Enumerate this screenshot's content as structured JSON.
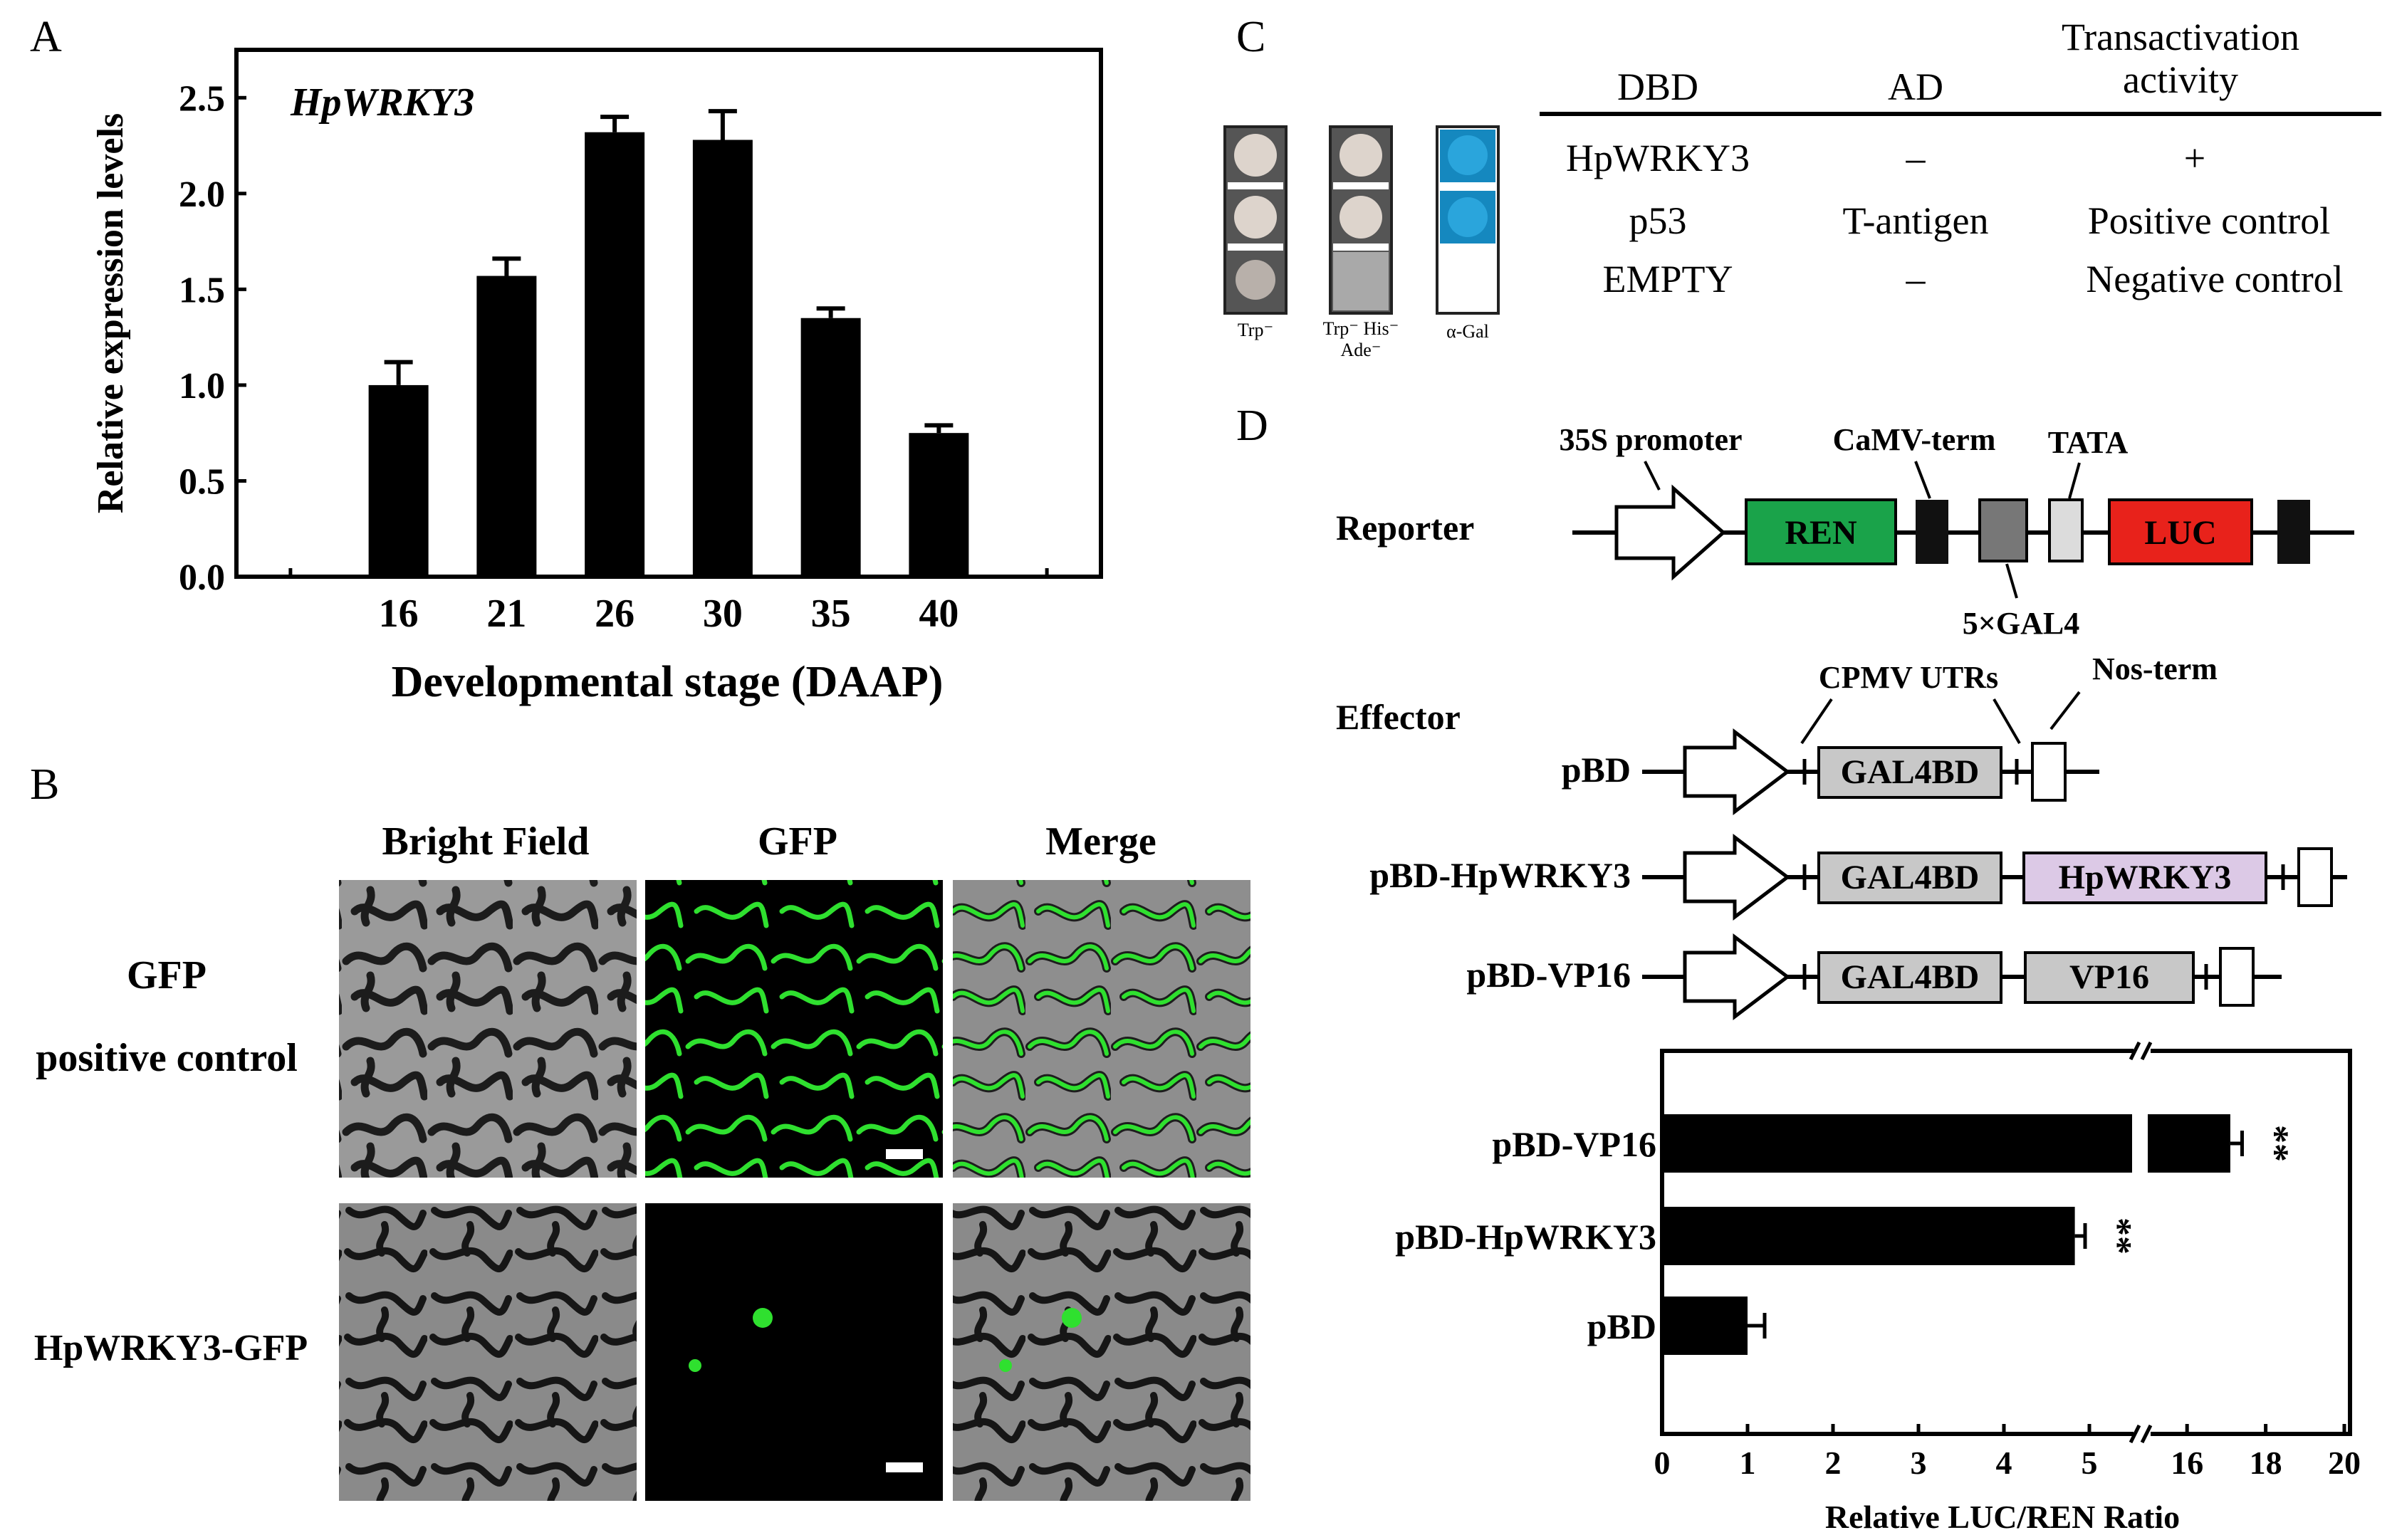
{
  "panels": {
    "A": "A",
    "B": "B",
    "C": "C",
    "D": "D"
  },
  "colors": {
    "ren": "#1aa34a",
    "luc": "#e8221b",
    "hpwrky3_box": "#dcc9e6",
    "gal4bd_box": "#c8c8c8",
    "dark_box": "#777777",
    "tata_box": "#dcdcdc",
    "gfp_green": "#2fe02f",
    "xgal_blue": "#1588bf"
  },
  "chart_data": [
    {
      "type": "bar",
      "panel": "A",
      "title": "HpWRKY3",
      "xlabel": "Developmental stage (DAAP)",
      "ylabel": "Relative expression levels",
      "categories": [
        "16",
        "21",
        "26",
        "30",
        "35",
        "40"
      ],
      "values": [
        1.0,
        1.57,
        2.32,
        2.28,
        1.35,
        0.75
      ],
      "errors": [
        0.12,
        0.09,
        0.08,
        0.15,
        0.05,
        0.04
      ],
      "ylim": [
        0,
        2.75
      ],
      "yticks": [
        "0.0",
        "0.5",
        "1.0",
        "1.5",
        "2.0",
        "2.5"
      ],
      "ytick_values": [
        0,
        0.5,
        1.0,
        1.5,
        2.0,
        2.5
      ]
    },
    {
      "type": "bar",
      "orientation": "horizontal",
      "panel": "D",
      "xlabel": "Relative LUC/REN Ratio",
      "categories": [
        "pBD-VP16",
        "pBD-HpWRKY3",
        "pBD"
      ],
      "values": [
        17.1,
        4.83,
        1.0
      ],
      "errors": [
        0.3,
        0.12,
        0.2
      ],
      "significance": [
        "**",
        "**",
        ""
      ],
      "axis_break": [
        5.5,
        15
      ],
      "xticks": [
        "0",
        "1",
        "2",
        "3",
        "4",
        "5",
        "16",
        "18",
        "20"
      ],
      "xtick_values": [
        0,
        1,
        2,
        3,
        4,
        5,
        16,
        18,
        20
      ]
    }
  ],
  "panel_b": {
    "columns": [
      "Bright Field",
      "GFP",
      "Merge"
    ],
    "rows": [
      {
        "label_line1": "GFP",
        "label_line2": "positive control"
      },
      {
        "label_line1": "HpWRKY3-GFP",
        "label_line2": ""
      }
    ]
  },
  "panel_c": {
    "plate_labels": [
      "Trp⁻",
      "Trp⁻ His⁻",
      "Ade⁻",
      "α-Gal"
    ],
    "table": {
      "headers": [
        "DBD",
        "AD",
        "Transactivation",
        "activity"
      ],
      "rows": [
        [
          "HpWRKY3",
          "–",
          "+"
        ],
        [
          "p53",
          "T-antigen",
          "Positive control"
        ],
        [
          "EMPTY",
          "–",
          "Negative control"
        ]
      ]
    }
  },
  "panel_d": {
    "reporter_label": "Reporter",
    "effector_label": "Effector",
    "labels": {
      "promoter": "35S promoter",
      "camv": "CaMV-term",
      "tata": "TATA",
      "gal4": "5×GAL4",
      "cpmv": "CPMV UTRs",
      "nos": "Nos-term"
    },
    "boxes": {
      "ren": "REN",
      "luc": "LUC",
      "gal4bd": "GAL4BD",
      "hpwrky3": "HpWRKY3",
      "vp16": "VP16"
    },
    "constructs": [
      "pBD",
      "pBD-HpWRKY3",
      "pBD-VP16"
    ]
  }
}
